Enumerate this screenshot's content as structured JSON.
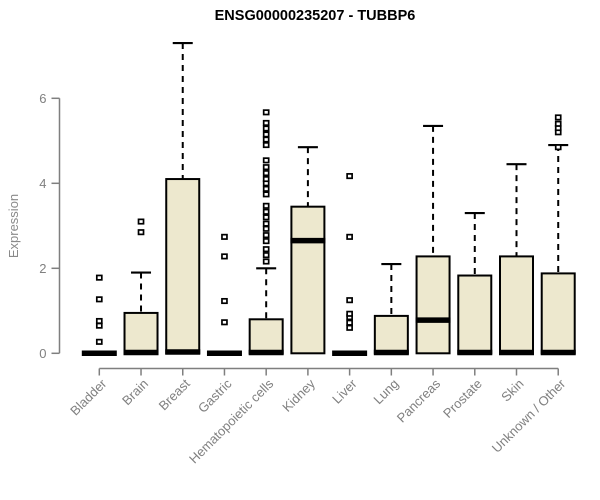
{
  "chart_data": {
    "type": "boxplot",
    "title": "ENSG00000235207 - TUBBP6",
    "ylabel": "Expression",
    "xlabel": "",
    "yticks": [
      0,
      2,
      4,
      6
    ],
    "ylim": [
      0,
      7.5
    ],
    "grid": false,
    "legend": "none",
    "box_fill": "#EDE8CE",
    "box_stroke": "#000000",
    "axis_color": "#7f7f7f",
    "label_color": "#808080",
    "title_color": "#000000",
    "categories": [
      {
        "label": "Bladder",
        "q1": 0,
        "median": 0,
        "q3": 0.02,
        "whisker_low": 0,
        "whisker_high": 0.02,
        "outliers": [
          0.27,
          0.65,
          0.76,
          1.27,
          1.78
        ]
      },
      {
        "label": "Brain",
        "q1": 0,
        "median": 0.02,
        "q3": 0.95,
        "whisker_low": 0,
        "whisker_high": 1.9,
        "outliers": [
          2.85,
          3.1
        ]
      },
      {
        "label": "Breast",
        "q1": 0,
        "median": 0.03,
        "q3": 4.1,
        "whisker_low": 0,
        "whisker_high": 7.3,
        "outliers": []
      },
      {
        "label": "Gastric",
        "q1": 0,
        "median": 0,
        "q3": 0.02,
        "whisker_low": 0,
        "whisker_high": 0.02,
        "outliers": [
          0.73,
          1.23,
          2.28,
          2.74
        ]
      },
      {
        "label": "Hematopoietic cells",
        "q1": 0,
        "median": 0.02,
        "q3": 0.8,
        "whisker_low": 0,
        "whisker_high": 2.0,
        "outliers": [
          2.16,
          2.31,
          2.45,
          2.64,
          2.78,
          2.93,
          3.05,
          3.2,
          3.33,
          3.47,
          3.74,
          3.87,
          4.0,
          4.1,
          4.24,
          4.38,
          4.54,
          4.9,
          5.03,
          5.15,
          5.29,
          5.42,
          5.67
        ]
      },
      {
        "label": "Kidney",
        "q1": 0,
        "median": 2.65,
        "q3": 3.45,
        "whisker_low": 0,
        "whisker_high": 4.85,
        "outliers": []
      },
      {
        "label": "Liver",
        "q1": 0,
        "median": 0,
        "q3": 0.02,
        "whisker_low": 0,
        "whisker_high": 0.02,
        "outliers": [
          0.6,
          0.72,
          0.85,
          0.93,
          1.25,
          2.74,
          4.17
        ]
      },
      {
        "label": "Lung",
        "q1": 0,
        "median": 0.02,
        "q3": 0.88,
        "whisker_low": 0,
        "whisker_high": 2.1,
        "outliers": []
      },
      {
        "label": "Pancreas",
        "q1": 0,
        "median": 0.78,
        "q3": 2.28,
        "whisker_low": 0,
        "whisker_high": 5.35,
        "outliers": []
      },
      {
        "label": "Prostate",
        "q1": 0,
        "median": 0.02,
        "q3": 1.83,
        "whisker_low": 0,
        "whisker_high": 3.3,
        "outliers": []
      },
      {
        "label": "Skin",
        "q1": 0,
        "median": 0.02,
        "q3": 2.28,
        "whisker_low": 0,
        "whisker_high": 4.45,
        "outliers": []
      },
      {
        "label": "Unknown / Other",
        "q1": 0,
        "median": 0.02,
        "q3": 1.88,
        "whisker_low": 0,
        "whisker_high": 4.9,
        "outliers": [
          4.85,
          5.2,
          5.3,
          5.4,
          5.55
        ]
      }
    ]
  }
}
